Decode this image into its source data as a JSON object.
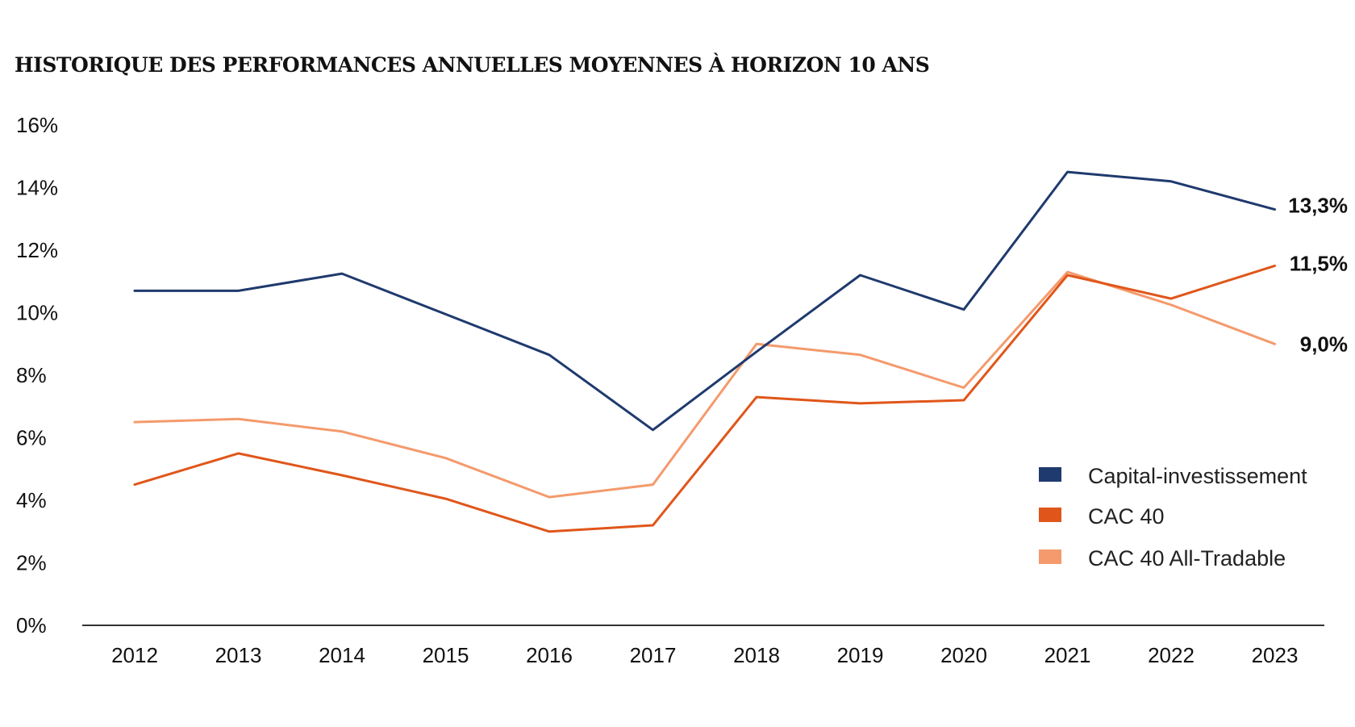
{
  "chart_data": {
    "type": "line",
    "title": "HISTORIQUE DES PERFORMANCES ANNUELLES MOYENNES À HORIZON 10 ANS",
    "x": [
      "2012",
      "2013",
      "2014",
      "2015",
      "2016",
      "2017",
      "2018",
      "2019",
      "2020",
      "2021",
      "2022",
      "2023"
    ],
    "ylim": [
      0,
      16
    ],
    "yticks": [
      0,
      2,
      4,
      6,
      8,
      10,
      12,
      14,
      16
    ],
    "ytick_labels": [
      "0%",
      "2%",
      "4%",
      "6%",
      "8%",
      "10%",
      "12%",
      "14%",
      "16%"
    ],
    "grid": false,
    "legend_position": "right",
    "series": [
      {
        "name": "Capital-investissement",
        "color": "#1f3a6e",
        "values": [
          10.7,
          10.7,
          11.25,
          9.95,
          8.65,
          6.25,
          8.75,
          11.2,
          10.1,
          14.5,
          14.2,
          13.3
        ],
        "end_label": "13,3%"
      },
      {
        "name": "CAC 40",
        "color": "#e0561a",
        "values": [
          4.5,
          5.5,
          4.8,
          4.05,
          3.0,
          3.2,
          7.3,
          7.1,
          7.2,
          11.2,
          10.45,
          11.5
        ],
        "end_label": "11,5%"
      },
      {
        "name": "CAC 40 All-Tradable",
        "color": "#f49a6c",
        "values": [
          6.5,
          6.6,
          6.2,
          5.35,
          4.1,
          4.5,
          9.0,
          8.65,
          7.6,
          11.3,
          10.25,
          9.0
        ],
        "end_label": "9,0%"
      }
    ]
  }
}
